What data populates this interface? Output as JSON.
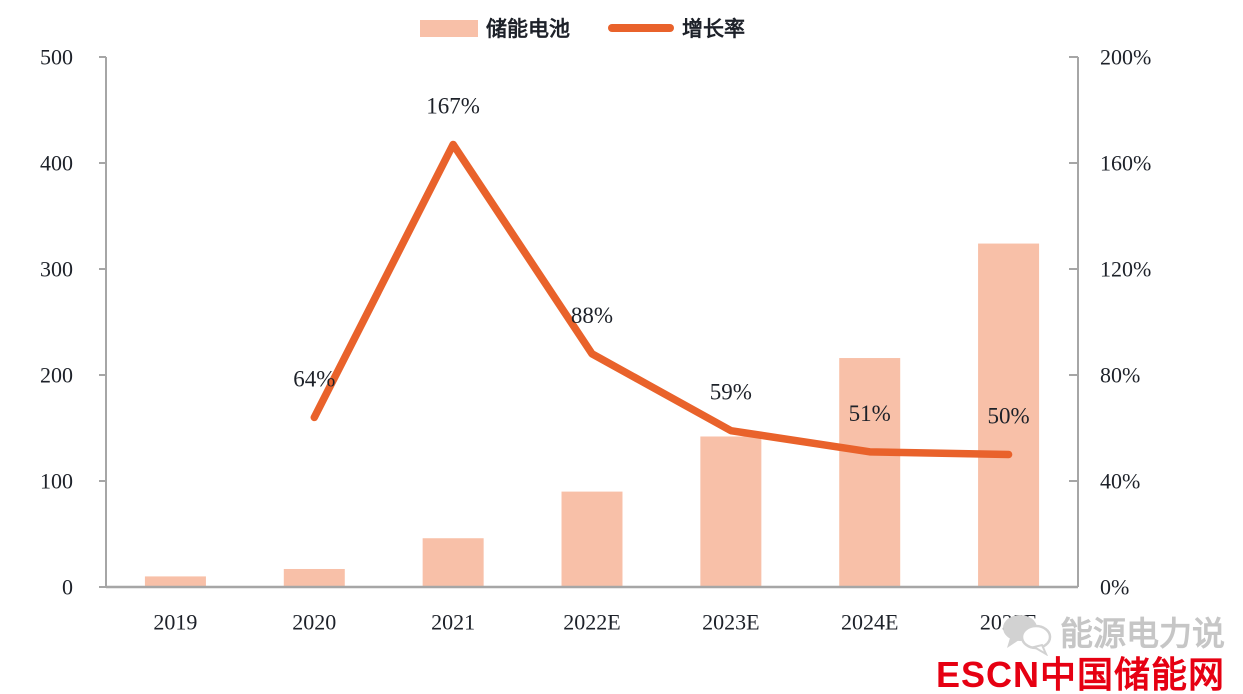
{
  "legend": {
    "items": [
      {
        "label": "储能电池",
        "type": "bar",
        "color": "#F8C0A8"
      },
      {
        "label": "增长率",
        "type": "line",
        "color": "#E9622B"
      }
    ]
  },
  "chart_data": {
    "type": "bar+line",
    "categories": [
      "2019",
      "2020",
      "2021",
      "2022E",
      "2023E",
      "2024E",
      "2025E"
    ],
    "series": [
      {
        "name": "储能电池",
        "type": "bar",
        "axis": "left",
        "color": "#F8C0A8",
        "values": [
          10,
          17,
          46,
          90,
          142,
          216,
          324
        ]
      },
      {
        "name": "增长率",
        "type": "line",
        "axis": "right",
        "color": "#E9622B",
        "values": [
          null,
          64,
          167,
          88,
          59,
          51,
          50
        ],
        "labels": [
          null,
          "64%",
          "167%",
          "88%",
          "59%",
          "51%",
          "50%"
        ]
      }
    ],
    "left_axis": {
      "min": 0,
      "max": 500,
      "ticks": [
        "0",
        "100",
        "200",
        "300",
        "400",
        "500"
      ]
    },
    "right_axis": {
      "min": 0,
      "max": 200,
      "ticks": [
        "0%",
        "40%",
        "80%",
        "120%",
        "160%",
        "200%"
      ]
    },
    "grid": false,
    "legend_position": "top",
    "axis_color": "#A6A6A6",
    "text_color": "#1d2129"
  },
  "watermark": {
    "line1": "能源电力说",
    "line2_escn": "ESCN",
    "line2_rest": "中国储能网",
    "gray_color": "#c6c6c6",
    "red_color": "#E60012"
  }
}
